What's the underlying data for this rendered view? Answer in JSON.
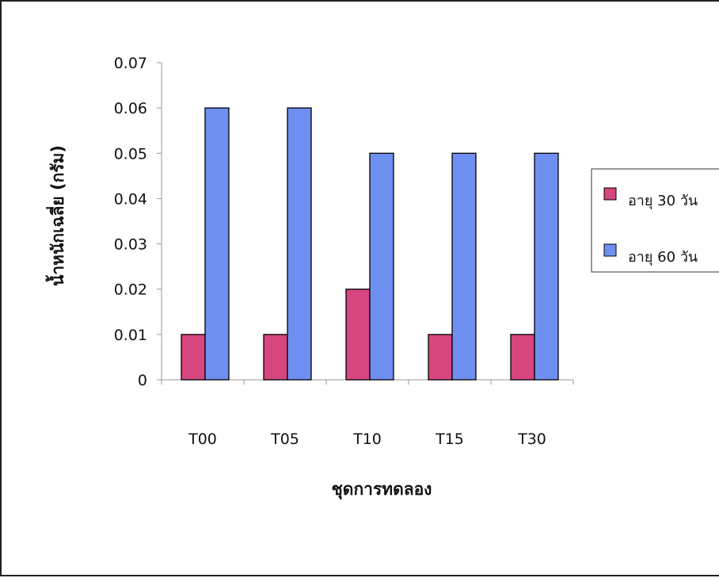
{
  "chart_data": {
    "type": "bar",
    "title": "",
    "xlabel": "ชุดการทดลอง",
    "ylabel": "น้ำหนักเฉลี่ย (กรัม)",
    "categories": [
      "T00",
      "T05",
      "T10",
      "T15",
      "T30"
    ],
    "series": [
      {
        "name": "อายุ 30 วัน",
        "values": [
          0.01,
          0.01,
          0.02,
          0.01,
          0.01
        ],
        "color": "#d6467f"
      },
      {
        "name": "อายุ 60 วัน",
        "values": [
          0.06,
          0.06,
          0.05,
          0.05,
          0.05
        ],
        "color": "#6f8ff0"
      }
    ],
    "ylim": [
      0,
      0.07
    ],
    "yticks": [
      "0",
      "0.01",
      "0.02",
      "0.03",
      "0.04",
      "0.05",
      "0.06",
      "0.07"
    ],
    "grid": false,
    "legend_position": "right"
  },
  "colors": {
    "border": "#222222",
    "bar_outline": "#000000",
    "axis": "#999999"
  }
}
